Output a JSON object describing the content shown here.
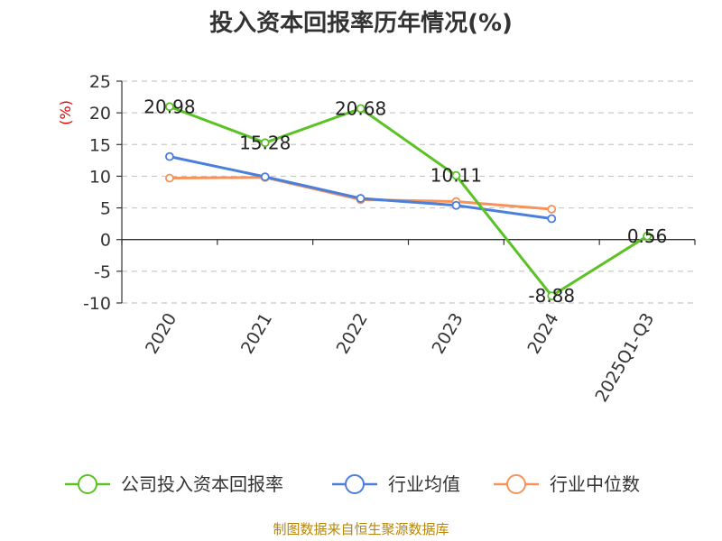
{
  "chart_data": {
    "type": "line",
    "title": "投入资本回报率历年情况(%)",
    "ylabel": "(%)",
    "xlabel": "",
    "categories": [
      "2020",
      "2021",
      "2022",
      "2023",
      "2024",
      "2025Q1-Q3"
    ],
    "ylim": [
      -10,
      25
    ],
    "yticks": [
      25,
      20,
      15,
      10,
      5,
      0,
      -5,
      -10
    ],
    "grid": true,
    "legend_position": "bottom",
    "series": [
      {
        "name": "公司投入资本回报率",
        "color": "#5bc225",
        "values": [
          20.98,
          15.28,
          20.68,
          10.11,
          -8.88,
          0.56
        ],
        "labels": [
          "20.98",
          "15.28",
          "20.68",
          "10.11",
          "-8.88",
          "0.56"
        ]
      },
      {
        "name": "行业均值",
        "color": "#4a7fdc",
        "values": [
          13.1,
          9.9,
          6.5,
          5.4,
          3.3,
          null
        ]
      },
      {
        "name": "行业中位数",
        "color": "#f5935a",
        "values": [
          9.7,
          9.8,
          6.3,
          6.0,
          4.8,
          null
        ]
      }
    ]
  },
  "source": "制图数据来自恒生聚源数据库"
}
